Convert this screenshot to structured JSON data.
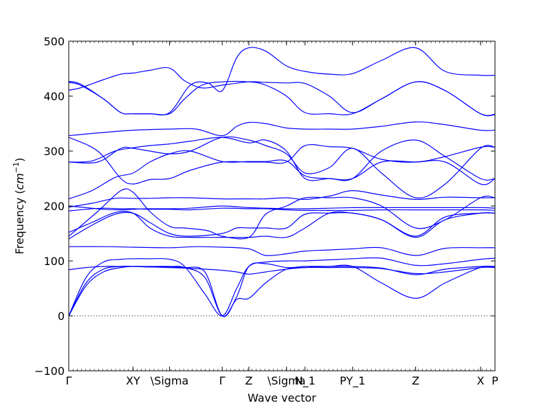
{
  "chart_data": {
    "type": "line",
    "title": "",
    "xlabel": "Wave vector",
    "ylabel": "Frequency ($cm^{-1}$)",
    "ylabel_parts": {
      "text": "Frequency (",
      "unit_base": "cm",
      "unit_exp": "−1",
      "close": ")"
    },
    "ylim": [
      -100,
      500
    ],
    "yticks": [
      -100,
      0,
      100,
      200,
      300,
      400,
      500
    ],
    "ytick_labels": [
      "−100",
      "0",
      "100",
      "200",
      "300",
      "400",
      "500"
    ],
    "xlim": [
      0,
      7.36
    ],
    "xticks": [
      {
        "x": 0.0,
        "label": "Γ"
      },
      {
        "x": 1.11,
        "label": "XY"
      },
      {
        "x": 1.74,
        "label": "\\Sigma"
      },
      {
        "x": 2.65,
        "label": "Γ"
      },
      {
        "x": 3.11,
        "label": "Z"
      },
      {
        "x": 3.76,
        "label": "\\Sigma"
      },
      {
        "x": 4.08,
        "label": "N_1"
      },
      {
        "x": 4.9,
        "label": "PY_1"
      },
      {
        "x": 5.99,
        "label": "Z"
      },
      {
        "x": 7.11,
        "label": "X"
      },
      {
        "x": 7.36,
        "label": "P"
      }
    ],
    "zero_line": 0,
    "line_color": "#0000ff",
    "series": [
      {
        "x": [
          0,
          0.3,
          0.6,
          0.9,
          1.11,
          1.4,
          1.74,
          2.0,
          2.35,
          2.65,
          2.9,
          3.11,
          3.4,
          3.76,
          4.08,
          4.5,
          4.9,
          5.4,
          5.99,
          6.5,
          7.11,
          7.36
        ],
        "y": [
          0,
          60,
          85,
          90,
          90,
          89,
          89,
          88,
          80,
          0,
          35,
          90,
          95,
          88,
          90,
          90,
          90,
          87,
          75,
          85,
          90,
          90
        ]
      },
      {
        "x": [
          0,
          0.3,
          0.6,
          0.9,
          1.11,
          1.4,
          1.74,
          2.0,
          2.35,
          2.65,
          2.9,
          3.11,
          3.4,
          3.76,
          4.08,
          4.5,
          4.9,
          5.4,
          5.99,
          6.5,
          7.11,
          7.36
        ],
        "y": [
          0,
          55,
          80,
          88,
          90,
          90,
          90,
          88,
          70,
          0,
          30,
          32,
          60,
          85,
          88,
          90,
          90,
          60,
          32,
          60,
          88,
          88
        ]
      },
      {
        "x": [
          0,
          0.3,
          0.6,
          0.9,
          1.11,
          1.4,
          1.74,
          2.0,
          2.35,
          2.65,
          2.9,
          3.11,
          3.4,
          3.76,
          4.08,
          4.5,
          4.9,
          5.4,
          5.99,
          6.5,
          7.11,
          7.36
        ],
        "y": [
          0,
          70,
          98,
          103,
          104,
          104,
          103,
          90,
          40,
          0,
          50,
          90,
          98,
          100,
          100,
          102,
          104,
          105,
          92,
          95,
          103,
          105
        ]
      },
      {
        "x": [
          0,
          0.3,
          0.6,
          0.9,
          1.11,
          1.4,
          1.74,
          2.0,
          2.35,
          2.65,
          2.9,
          3.11,
          3.4,
          3.76,
          4.08,
          4.5,
          4.9,
          5.4,
          5.99,
          6.5,
          7.11,
          7.36
        ],
        "y": [
          84,
          88,
          90,
          90,
          90,
          89,
          88,
          87,
          85,
          83,
          80,
          76,
          80,
          85,
          88,
          88,
          88,
          86,
          77,
          80,
          88,
          88
        ]
      },
      {
        "x": [
          0,
          0.6,
          1.11,
          1.74,
          2.2,
          2.65,
          3.11,
          3.4,
          3.76,
          4.08,
          4.5,
          4.9,
          5.4,
          5.99,
          6.5,
          7.11,
          7.36
        ],
        "y": [
          126,
          126,
          125,
          124,
          126,
          125,
          122,
          110,
          113,
          118,
          120,
          122,
          124,
          110,
          123,
          124,
          124
        ]
      },
      {
        "x": [
          0,
          0.4,
          0.8,
          1.11,
          1.4,
          1.74,
          2.1,
          2.65,
          2.9,
          3.11,
          3.4,
          3.76,
          4.08,
          4.5,
          4.9,
          5.4,
          5.99,
          6.5,
          7.11,
          7.36
        ],
        "y": [
          140,
          165,
          185,
          187,
          170,
          150,
          145,
          150,
          160,
          160,
          160,
          160,
          185,
          187,
          187,
          175,
          143,
          175,
          187,
          187
        ]
      },
      {
        "x": [
          0,
          0.4,
          0.8,
          1.11,
          1.4,
          1.74,
          2.1,
          2.65,
          3.11,
          3.4,
          3.76,
          4.08,
          4.5,
          4.9,
          5.4,
          5.99,
          6.5,
          7.11,
          7.36
        ],
        "y": [
          152,
          170,
          188,
          187,
          160,
          145,
          143,
          143,
          143,
          145,
          143,
          160,
          187,
          187,
          175,
          145,
          180,
          187,
          187
        ]
      },
      {
        "x": [
          0,
          0.3,
          0.6,
          0.9,
          1.11,
          1.4,
          1.74,
          2.1,
          2.65,
          3.11,
          3.4,
          3.76,
          4.08,
          4.5,
          4.9,
          5.4,
          5.99,
          6.5,
          7.11,
          7.36
        ],
        "y": [
          191,
          194,
          196,
          195,
          195,
          194,
          194,
          193,
          196,
          195,
          195,
          193,
          192,
          192,
          192,
          193,
          193,
          193,
          193,
          192
        ]
      },
      {
        "x": [
          0,
          0.3,
          0.6,
          0.9,
          1.11,
          1.4,
          1.74,
          2.1,
          2.65,
          3.11,
          3.4,
          3.76,
          4.08,
          4.5,
          4.9,
          5.4,
          5.99,
          6.5,
          7.11,
          7.36
        ],
        "y": [
          200,
          197,
          194,
          193,
          194,
          195,
          195,
          196,
          200,
          197,
          196,
          195,
          195,
          196,
          197,
          197,
          197,
          197,
          197,
          196
        ]
      },
      {
        "x": [
          0,
          0.5,
          0.9,
          1.11,
          1.4,
          1.74,
          2.0,
          2.4,
          2.65,
          3.11,
          3.4,
          3.76,
          4.08,
          4.5,
          4.9,
          5.4,
          5.99,
          6.5,
          7.11,
          7.36
        ],
        "y": [
          145,
          190,
          228,
          225,
          190,
          163,
          160,
          155,
          145,
          143,
          185,
          200,
          215,
          215,
          215,
          200,
          160,
          175,
          215,
          215
        ]
      },
      {
        "x": [
          0,
          0.4,
          0.8,
          1.11,
          1.4,
          1.74,
          2.1,
          2.65,
          3.11,
          3.4,
          3.76,
          4.08,
          4.5,
          4.9,
          5.4,
          5.99,
          6.5,
          7.11,
          7.36
        ],
        "y": [
          198,
          205,
          214,
          214,
          214,
          215,
          215,
          213,
          213,
          213,
          215,
          212,
          218,
          228,
          220,
          212,
          216,
          215,
          215
        ]
      },
      {
        "x": [
          0,
          0.4,
          0.8,
          1.11,
          1.4,
          1.74,
          2.1,
          2.65,
          3.11,
          3.4,
          3.76,
          4.08,
          4.5,
          4.9,
          5.4,
          5.99,
          6.5,
          7.11,
          7.36
        ],
        "y": [
          213,
          228,
          252,
          260,
          280,
          295,
          300,
          281,
          281,
          281,
          282,
          255,
          250,
          250,
          280,
          280,
          280,
          240,
          250
        ]
      },
      {
        "x": [
          0,
          0.5,
          0.9,
          1.11,
          1.4,
          1.74,
          2.1,
          2.65,
          3.11,
          3.4,
          3.76,
          4.08,
          4.5,
          4.9,
          5.4,
          5.99,
          6.5,
          7.11,
          7.36
        ],
        "y": [
          280,
          280,
          305,
          305,
          300,
          295,
          300,
          325,
          320,
          310,
          295,
          260,
          270,
          305,
          260,
          215,
          240,
          305,
          307
        ]
      },
      {
        "x": [
          0,
          0.5,
          0.9,
          1.11,
          1.4,
          1.74,
          2.1,
          2.65,
          3.11,
          3.4,
          3.76,
          4.08,
          4.5,
          4.9,
          5.4,
          5.99,
          6.5,
          7.11,
          7.36
        ],
        "y": [
          325,
          300,
          250,
          240,
          248,
          250,
          265,
          280,
          280,
          280,
          280,
          310,
          308,
          305,
          285,
          280,
          290,
          307,
          307
        ]
      },
      {
        "x": [
          0,
          0.4,
          0.8,
          1.11,
          1.4,
          1.74,
          2.1,
          2.65,
          3.11,
          3.4,
          3.76,
          4.08,
          4.5,
          4.9,
          5.4,
          5.99,
          6.5,
          7.11,
          7.36
        ],
        "y": [
          280,
          282,
          300,
          306,
          310,
          313,
          318,
          325,
          315,
          320,
          300,
          250,
          250,
          250,
          300,
          320,
          290,
          250,
          250
        ]
      },
      {
        "x": [
          0,
          0.5,
          1.11,
          1.74,
          2.2,
          2.65,
          2.9,
          3.11,
          3.4,
          3.76,
          4.08,
          4.5,
          4.9,
          5.4,
          5.99,
          6.5,
          7.11,
          7.36
        ],
        "y": [
          328,
          333,
          338,
          340,
          340,
          328,
          345,
          352,
          350,
          342,
          340,
          340,
          340,
          345,
          353,
          348,
          338,
          338
        ]
      },
      {
        "x": [
          0,
          0.2,
          0.6,
          0.9,
          1.11,
          1.4,
          1.74,
          2.0,
          2.3,
          2.65,
          3.11,
          3.4,
          3.76,
          4.08,
          4.5,
          4.9,
          5.4,
          5.99,
          6.5,
          7.11,
          7.36
        ],
        "y": [
          427,
          422,
          395,
          370,
          368,
          368,
          368,
          395,
          420,
          426,
          426,
          420,
          400,
          370,
          368,
          368,
          395,
          426,
          410,
          368,
          366
        ]
      },
      {
        "x": [
          0,
          0.2,
          0.6,
          0.9,
          1.11,
          1.4,
          1.74,
          2.0,
          2.3,
          2.65,
          3.11,
          3.4,
          3.76,
          4.08,
          4.5,
          4.9,
          5.4,
          5.99,
          6.5,
          7.11,
          7.36
        ],
        "y": [
          411,
          415,
          430,
          440,
          442,
          447,
          451,
          428,
          415,
          420,
          426,
          425,
          424,
          423,
          400,
          370,
          395,
          426,
          410,
          368,
          367
        ]
      },
      {
        "x": [
          0,
          0.2,
          0.6,
          0.9,
          1.11,
          1.4,
          1.74,
          2.1,
          2.4,
          2.65,
          2.9,
          3.11,
          3.4,
          3.76,
          4.08,
          4.5,
          4.9,
          5.4,
          5.99,
          6.5,
          7.11,
          7.36
        ],
        "y": [
          425,
          420,
          395,
          370,
          368,
          368,
          370,
          420,
          424,
          410,
          470,
          488,
          482,
          455,
          445,
          440,
          441,
          465,
          488,
          445,
          438,
          438
        ]
      }
    ]
  }
}
